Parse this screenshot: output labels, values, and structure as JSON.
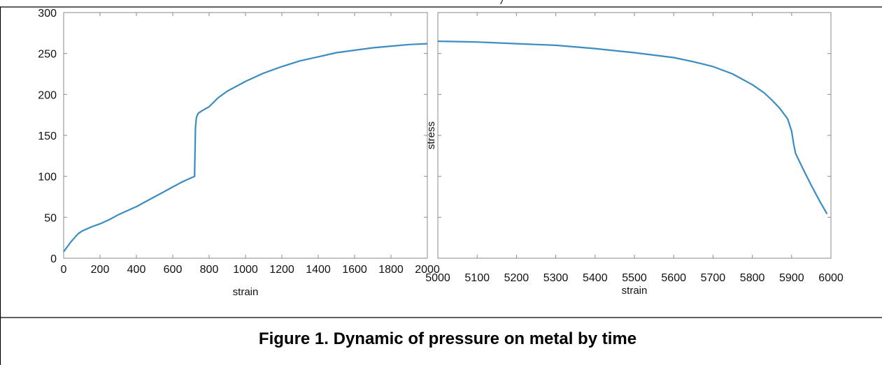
{
  "caption": "Figure 1. Dynamic of pressure on metal by time",
  "top_mark": "/",
  "chart_data": [
    {
      "type": "line",
      "xlabel": "strain",
      "ylabel": "",
      "xlim": [
        0,
        2000
      ],
      "ylim": [
        0,
        300
      ],
      "x_ticks": [
        0,
        200,
        400,
        600,
        800,
        1000,
        1200,
        1400,
        1600,
        1800,
        2000
      ],
      "y_ticks": [
        0,
        50,
        100,
        150,
        200,
        250,
        300
      ],
      "x_tick_labels": [
        "0",
        "200",
        "400",
        "600",
        "800",
        "1000",
        "1200",
        "1400",
        "1600",
        "1800",
        "2000"
      ],
      "y_tick_labels": [
        "0",
        "50",
        "100",
        "150",
        "200",
        "250",
        "300"
      ],
      "grid": false,
      "color": "#3a8cc1",
      "series": [
        {
          "x": [
            0,
            20,
            40,
            60,
            80,
            100,
            150,
            200,
            250,
            300,
            350,
            400,
            450,
            500,
            550,
            600,
            650,
            700,
            720,
            722,
            725,
            730,
            740,
            760,
            800,
            850,
            900,
            1000,
            1100,
            1200,
            1300,
            1400,
            1500,
            1600,
            1700,
            1800,
            1900,
            2000
          ],
          "y": [
            8,
            14,
            20,
            25,
            30,
            33,
            38,
            42,
            47,
            53,
            58,
            63,
            69,
            75,
            81,
            87,
            93,
            98,
            100,
            125,
            160,
            172,
            177,
            180,
            185,
            196,
            204,
            216,
            226,
            234,
            241,
            246,
            251,
            254,
            257,
            259,
            261,
            262
          ]
        }
      ]
    },
    {
      "type": "line",
      "xlabel": "strain",
      "ylabel": "stress",
      "xlim": [
        5000,
        6000
      ],
      "ylim": [
        0,
        300
      ],
      "x_ticks": [
        5000,
        5100,
        5200,
        5300,
        5400,
        5500,
        5600,
        5700,
        5800,
        5900,
        6000
      ],
      "y_ticks": [
        0,
        50,
        100,
        150,
        200,
        250,
        300
      ],
      "x_tick_labels": [
        "5000",
        "5100",
        "5200",
        "5300",
        "5400",
        "5500",
        "5600",
        "5700",
        "5800",
        "5900",
        "6000"
      ],
      "grid": false,
      "color": "#3a8cc1",
      "series": [
        {
          "x": [
            5000,
            5100,
            5200,
            5300,
            5400,
            5500,
            5600,
            5650,
            5700,
            5750,
            5800,
            5830,
            5850,
            5870,
            5890,
            5900,
            5905,
            5910,
            5930,
            5950,
            5970,
            5990
          ],
          "y": [
            265,
            264,
            262,
            260,
            256,
            251,
            245,
            240,
            234,
            225,
            212,
            202,
            193,
            183,
            170,
            155,
            140,
            128,
            108,
            89,
            71,
            54
          ]
        }
      ]
    }
  ]
}
